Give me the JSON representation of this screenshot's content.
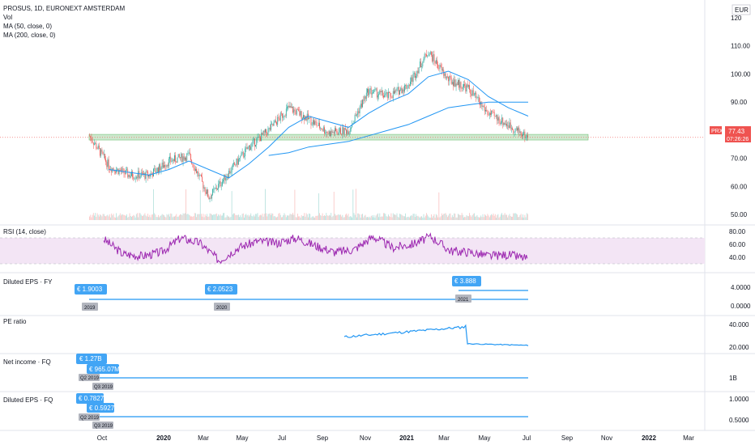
{
  "header": {
    "symbol_line": "PROSUS, 1D, EURONEXT AMSTERDAM",
    "vol_label": "Vol",
    "ma50_label": "MA (50, close, 0)",
    "ma200_label": "MA (200, close, 0)",
    "currency_badge": "EUR"
  },
  "price_tag": {
    "ticker": "PRX",
    "price": "77.43",
    "countdown": "07:26:26",
    "color": "#ef5350"
  },
  "panes": {
    "rsi_label": "RSI (14, close)",
    "eps_fy_label": "Diluted EPS · FY",
    "pe_label": "PE ratio",
    "net_income_label": "Net income · FQ",
    "eps_fq_label": "Diluted EPS · FQ"
  },
  "eps_fy_tags": [
    {
      "value": "€ 1.9003",
      "period": "2019"
    },
    {
      "value": "€ 2.0523",
      "period": "2020"
    },
    {
      "value": "€ 3.888",
      "period": "2021"
    }
  ],
  "net_income_tags": [
    {
      "value": "€ 1.27B",
      "period": "Q2 2019"
    },
    {
      "value": "€ 965.07M",
      "period": "Q3 2019"
    }
  ],
  "eps_fq_tags": [
    {
      "value": "€ 0.7827",
      "period": "Q2 2019"
    },
    {
      "value": "€ 0.5927",
      "period": "Q3 2019"
    }
  ],
  "price_axis_ticks": [
    "120",
    "110.00",
    "100.00",
    "90.00",
    "80.00",
    "70.00",
    "60.00",
    "50.00"
  ],
  "rsi_axis_ticks": [
    "80.00",
    "60.00",
    "40.00"
  ],
  "eps_fy_axis_ticks": [
    "4.0000",
    "0.0000"
  ],
  "pe_axis_ticks": [
    "40.000",
    "20.000"
  ],
  "net_income_axis_ticks": [
    "1B"
  ],
  "eps_fq_axis_ticks": [
    "1.0000",
    "0.5000"
  ],
  "time_axis_labels": [
    "Oct",
    "2020",
    "Mar",
    "May",
    "Jul",
    "Sep",
    "Nov",
    "2021",
    "Mar",
    "May",
    "Jul",
    "Sep",
    "Nov",
    "2022",
    "Mar"
  ],
  "colors": {
    "up": "#26a69a",
    "down": "#ef5350",
    "ma": "#2196f3",
    "rsi_line": "#9c27b0",
    "rsi_band": "#f3e5f5",
    "support_zone": "#c8e6c9",
    "tag_blue": "#42a5f5",
    "tag_grey": "#b2b5be"
  },
  "chart_data": {
    "type": "line",
    "title": "PROSUS, 1D, EURONEXT AMSTERDAM",
    "x": [
      "2019-09",
      "2019-10",
      "2019-11",
      "2019-12",
      "2020-01",
      "2020-02",
      "2020-03",
      "2020-04",
      "2020-05",
      "2020-06",
      "2020-07",
      "2020-08",
      "2020-09",
      "2020-10",
      "2020-11",
      "2020-12",
      "2021-01",
      "2021-02",
      "2021-03",
      "2021-04",
      "2021-05",
      "2021-06",
      "2021-07"
    ],
    "series": [
      {
        "name": "PRX",
        "values": [
          78,
          67,
          64,
          64,
          69,
          71,
          56,
          65,
          74,
          80,
          88,
          84,
          79,
          80,
          94,
          92,
          96,
          108,
          98,
          95,
          86,
          82,
          77.43
        ]
      }
    ],
    "ma50": [
      null,
      66,
      65,
      64,
      66,
      69,
      66,
      63,
      68,
      74,
      81,
      85,
      83,
      81,
      86,
      90,
      93,
      99,
      101,
      98,
      92,
      88,
      85
    ],
    "ma200": [
      null,
      null,
      null,
      null,
      null,
      null,
      null,
      null,
      null,
      71,
      72,
      74,
      75,
      76,
      78,
      80,
      82,
      85,
      88,
      89,
      90,
      90,
      90
    ],
    "support_zone": [
      76.5,
      78.5
    ],
    "ylim": [
      48,
      120
    ],
    "rsi": [
      68,
      45,
      42,
      48,
      70,
      62,
      35,
      55,
      65,
      62,
      70,
      58,
      48,
      52,
      72,
      55,
      60,
      72,
      50,
      48,
      42,
      44,
      38
    ],
    "rsi_band": [
      30,
      70
    ]
  }
}
